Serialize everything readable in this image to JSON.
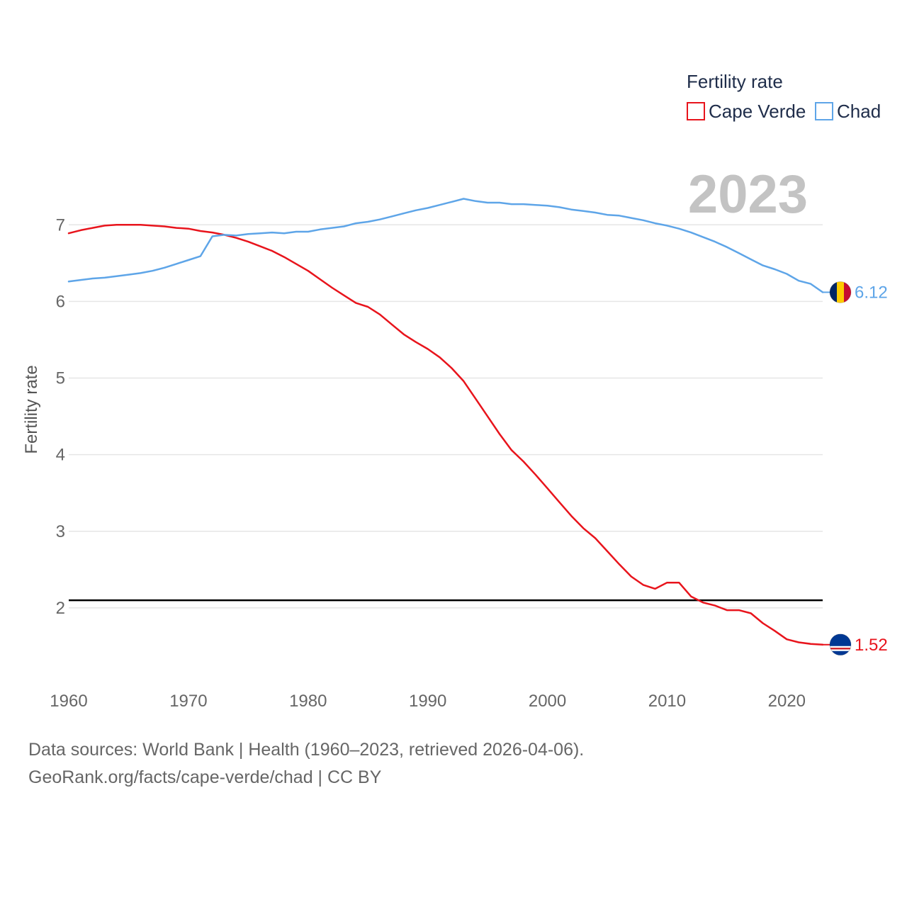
{
  "chart_data": {
    "type": "line",
    "legend_title": "Fertility rate",
    "ylabel": "Fertility rate",
    "xlabel": "",
    "year_label": "2023",
    "xlim": [
      1960,
      2023
    ],
    "ylim": [
      1.0,
      7.9
    ],
    "x_ticks": [
      1960,
      1970,
      1980,
      1990,
      2000,
      2010,
      2020
    ],
    "y_ticks": [
      2,
      3,
      4,
      5,
      6,
      7
    ],
    "reference_line": 2.1,
    "x": [
      1960,
      1961,
      1962,
      1963,
      1964,
      1965,
      1966,
      1967,
      1968,
      1969,
      1970,
      1971,
      1972,
      1973,
      1974,
      1975,
      1976,
      1977,
      1978,
      1979,
      1980,
      1981,
      1982,
      1983,
      1984,
      1985,
      1986,
      1987,
      1988,
      1989,
      1990,
      1991,
      1992,
      1993,
      1994,
      1995,
      1996,
      1997,
      1998,
      1999,
      2000,
      2001,
      2002,
      2003,
      2004,
      2005,
      2006,
      2007,
      2008,
      2009,
      2010,
      2011,
      2012,
      2013,
      2014,
      2015,
      2016,
      2017,
      2018,
      2019,
      2020,
      2021,
      2022,
      2023
    ],
    "series": [
      {
        "name": "Cape Verde",
        "color": "#e8141c",
        "end_label": "1.52",
        "values": [
          6.89,
          6.93,
          6.96,
          6.99,
          7.0,
          7.0,
          7.0,
          6.99,
          6.98,
          6.96,
          6.95,
          6.92,
          6.9,
          6.87,
          6.83,
          6.78,
          6.72,
          6.66,
          6.58,
          6.49,
          6.4,
          6.29,
          6.18,
          6.08,
          5.98,
          5.93,
          5.83,
          5.7,
          5.57,
          5.47,
          5.38,
          5.27,
          5.13,
          4.96,
          4.73,
          4.5,
          4.27,
          4.06,
          3.91,
          3.74,
          3.56,
          3.38,
          3.2,
          3.04,
          2.91,
          2.74,
          2.57,
          2.41,
          2.3,
          2.25,
          2.33,
          2.33,
          2.15,
          2.07,
          2.03,
          1.97,
          1.97,
          1.93,
          1.8,
          1.7,
          1.59,
          1.55,
          1.53,
          1.52
        ]
      },
      {
        "name": "Chad",
        "color": "#5ea5e8",
        "end_label": "6.12",
        "values": [
          6.26,
          6.28,
          6.3,
          6.31,
          6.33,
          6.35,
          6.37,
          6.4,
          6.44,
          6.49,
          6.54,
          6.59,
          6.85,
          6.87,
          6.86,
          6.88,
          6.89,
          6.9,
          6.89,
          6.91,
          6.91,
          6.94,
          6.96,
          6.98,
          7.02,
          7.04,
          7.07,
          7.11,
          7.15,
          7.19,
          7.22,
          7.26,
          7.3,
          7.34,
          7.31,
          7.29,
          7.29,
          7.27,
          7.27,
          7.26,
          7.25,
          7.23,
          7.2,
          7.18,
          7.16,
          7.13,
          7.12,
          7.09,
          7.06,
          7.02,
          6.99,
          6.95,
          6.9,
          6.84,
          6.78,
          6.71,
          6.63,
          6.55,
          6.47,
          6.42,
          6.36,
          6.27,
          6.23,
          6.12
        ]
      }
    ]
  },
  "footer": {
    "line1": "Data sources: World Bank | Health (1960–2023, retrieved 2026-04-06).",
    "line2": "GeoRank.org/facts/cape-verde/chad | CC BY"
  }
}
